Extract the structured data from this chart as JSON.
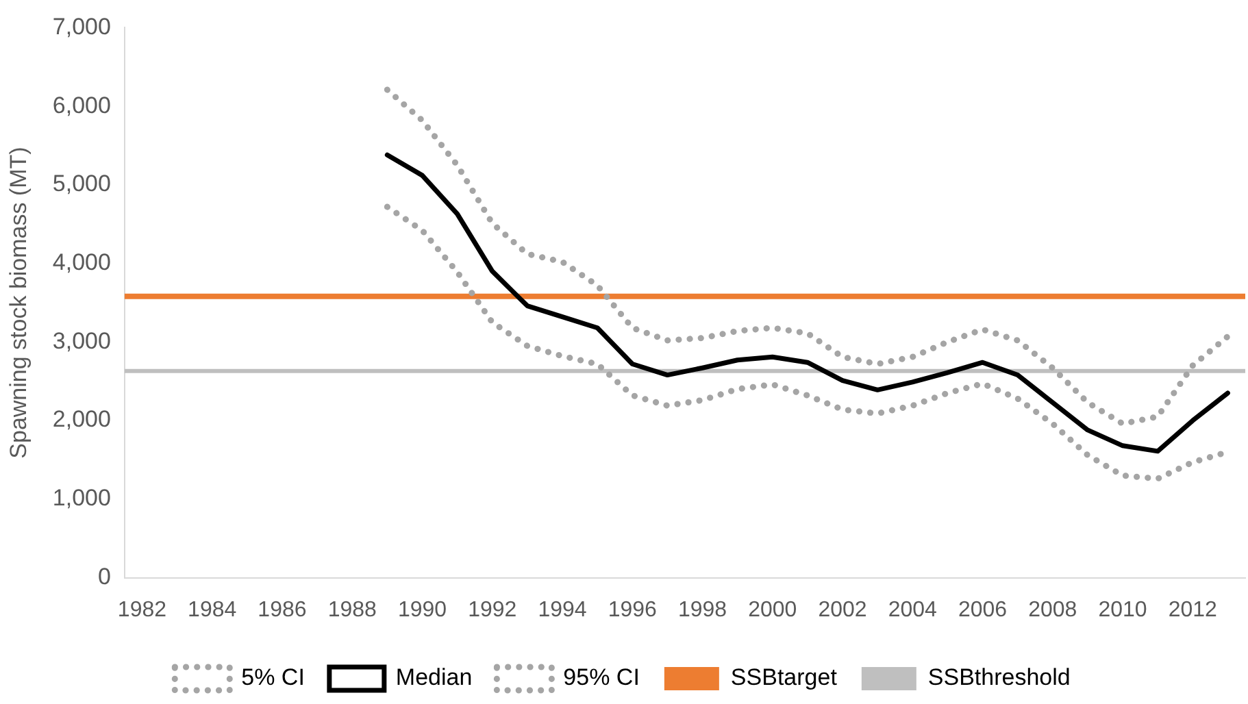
{
  "chart_data": {
    "type": "line",
    "ylabel": "Spawning stock biomass (MT)",
    "categories": [
      "1982",
      null,
      "1984",
      null,
      "1986",
      null,
      "1988",
      null,
      "1990",
      null,
      "1992",
      null,
      "1994",
      null,
      "1996",
      null,
      "1998",
      null,
      "2000",
      null,
      "2002",
      null,
      "2004",
      null,
      "2006",
      null,
      "2008",
      null,
      "2010",
      null,
      "2012",
      null
    ],
    "series": [
      {
        "name": "5% CI",
        "color": "#a5a5a5",
        "line_style": "dotted",
        "values": [
          null,
          null,
          null,
          null,
          null,
          null,
          null,
          4720,
          4420,
          3890,
          3250,
          2950,
          2820,
          2720,
          2320,
          2190,
          2260,
          2400,
          2460,
          2320,
          2140,
          2090,
          2190,
          2350,
          2470,
          2280,
          1960,
          1560,
          1300,
          1260,
          1470,
          1600
        ]
      },
      {
        "name": "Median",
        "color": "#000000",
        "line_style": "solid",
        "values": [
          null,
          null,
          null,
          null,
          null,
          null,
          null,
          5380,
          5120,
          4630,
          3900,
          3460,
          3320,
          3180,
          2720,
          2580,
          2670,
          2770,
          2810,
          2740,
          2510,
          2390,
          2490,
          2610,
          2740,
          2580,
          2230,
          1880,
          1680,
          1610,
          2000,
          2350
        ]
      },
      {
        "name": "95% CI",
        "color": "#a5a5a5",
        "line_style": "dotted",
        "values": [
          null,
          null,
          null,
          null,
          null,
          null,
          null,
          6210,
          5820,
          5250,
          4510,
          4120,
          4020,
          3720,
          3180,
          3020,
          3050,
          3140,
          3180,
          3110,
          2810,
          2720,
          2810,
          3000,
          3160,
          3020,
          2670,
          2230,
          1960,
          2050,
          2700,
          3070
        ]
      }
    ],
    "ref_lines": [
      {
        "axis": "y",
        "value": 3580,
        "label": "SSBtarget",
        "color": "#ed7d31",
        "line_style": "solid"
      },
      {
        "axis": "y",
        "value": 2630,
        "label": "SSBthreshold",
        "color": "#bfbfbf",
        "line_style": "solid"
      }
    ],
    "ylim": [
      0,
      7000
    ],
    "yticks": [
      0,
      {
        "value": 1000,
        "label": "1,000"
      },
      {
        "value": 2000,
        "label": "2,000"
      },
      {
        "value": 3000,
        "label": "3,000"
      },
      {
        "value": 4000,
        "label": "4,000"
      },
      {
        "value": 5000,
        "label": "5,000"
      },
      {
        "value": 6000,
        "label": "6,000"
      },
      {
        "value": 7000,
        "label": "7,000"
      }
    ],
    "grid": false,
    "legend": "bottom",
    "marker": "none"
  }
}
